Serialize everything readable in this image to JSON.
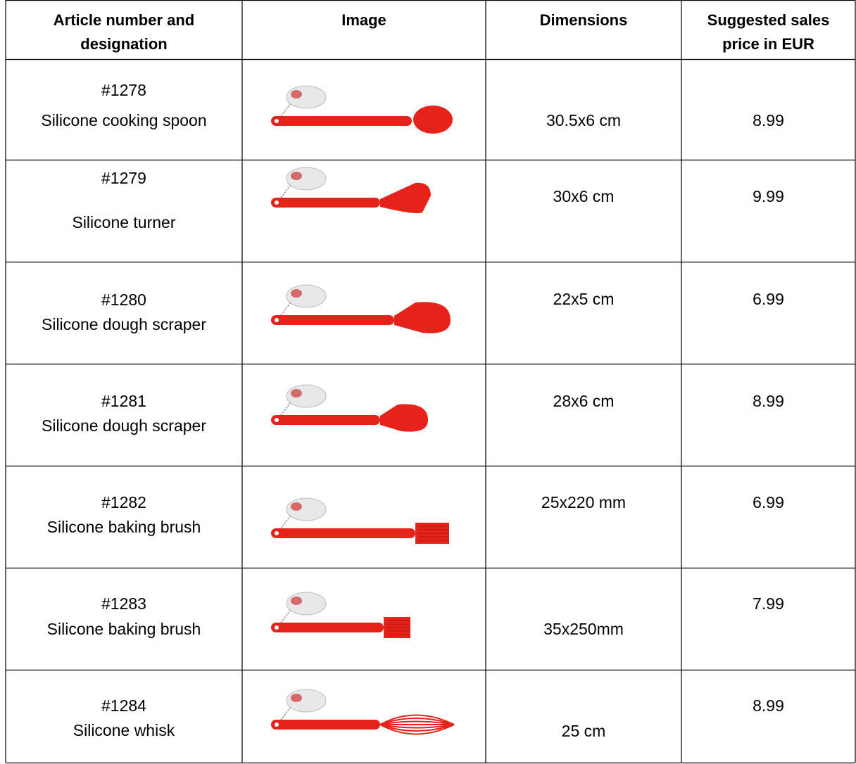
{
  "table": {
    "header": [
      [
        "Article number and",
        "designation"
      ],
      [
        "Image"
      ],
      [
        "Dimensions"
      ],
      [
        "Suggested sales",
        "price in EUR"
      ]
    ],
    "rows": [
      [
        "#1278",
        "Silicone cooking spoon",
        "30.5x6 cm",
        "8.99"
      ],
      [
        "#1279",
        "Silicone turner",
        "30x6 cm",
        "9.99"
      ],
      [
        "#1280",
        "Silicone dough scraper",
        "22x5 cm",
        "6.99"
      ],
      [
        "#1281",
        "Silicone dough scraper",
        "28x6 cm",
        "8.99"
      ],
      [
        "#1282",
        "Silicone baking brush",
        "25x220 mm",
        "6.99"
      ],
      [
        "#1283",
        "Silicone baking brush",
        "35x250mm",
        "7.99"
      ],
      [
        "#1284",
        "Silicone whisk",
        "25 cm",
        "8.99"
      ]
    ]
  }
}
